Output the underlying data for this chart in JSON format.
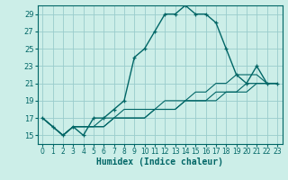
{
  "xlabel": "Humidex (Indice chaleur)",
  "bg_color": "#cceee8",
  "grid_color": "#99cccc",
  "line_color": "#006666",
  "xlim": [
    -0.5,
    23.5
  ],
  "ylim": [
    14,
    30
  ],
  "xticks": [
    0,
    1,
    2,
    3,
    4,
    5,
    6,
    7,
    8,
    9,
    10,
    11,
    12,
    13,
    14,
    15,
    16,
    17,
    18,
    19,
    20,
    21,
    22,
    23
  ],
  "yticks": [
    15,
    17,
    19,
    21,
    23,
    25,
    27,
    29
  ],
  "series": [
    [
      17,
      16,
      15,
      16,
      15,
      17,
      17,
      18,
      19,
      24,
      25,
      27,
      29,
      29,
      30,
      29,
      29,
      28,
      25,
      22,
      21,
      23,
      21,
      21
    ],
    [
      17,
      16,
      15,
      16,
      16,
      16,
      16,
      17,
      17,
      17,
      17,
      18,
      18,
      18,
      19,
      19,
      19,
      19,
      20,
      20,
      20,
      21,
      21,
      21
    ],
    [
      17,
      16,
      15,
      16,
      16,
      16,
      16,
      17,
      17,
      17,
      17,
      18,
      18,
      18,
      19,
      19,
      19,
      20,
      20,
      20,
      21,
      21,
      21,
      21
    ],
    [
      17,
      16,
      15,
      16,
      16,
      16,
      17,
      17,
      18,
      18,
      18,
      18,
      19,
      19,
      19,
      20,
      20,
      21,
      21,
      22,
      22,
      22,
      21,
      21
    ]
  ]
}
